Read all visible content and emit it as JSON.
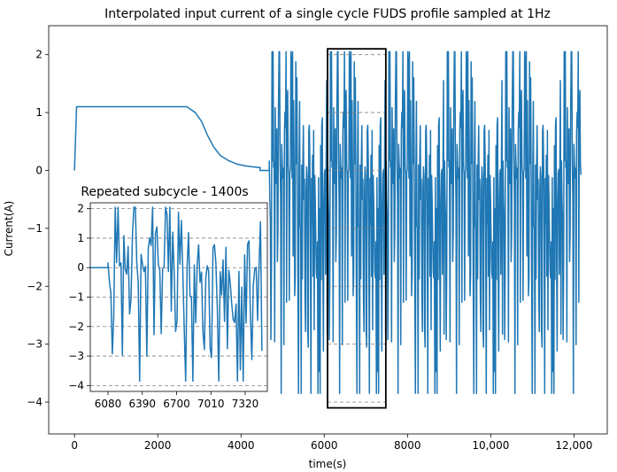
{
  "chart_data": {
    "type": "line",
    "title": "Interpolated input current of a single cycle FUDS profile sampled at 1Hz",
    "xlabel": "time(s)",
    "ylabel": "Current(A)",
    "xlim": [
      -620,
      12800
    ],
    "ylim": [
      -4.55,
      2.5
    ],
    "x_ticks": [
      0,
      2000,
      4000,
      6000,
      8000,
      10000,
      12000
    ],
    "x_tick_labels": [
      "0",
      "2000",
      "4000",
      "6000",
      "8000",
      "10,000",
      "12,000"
    ],
    "y_ticks": [
      -4,
      -3,
      -2,
      -1,
      0,
      1,
      2
    ],
    "y_tick_labels": [
      "−4",
      "−3",
      "−2",
      "−1",
      "0",
      "1",
      "2"
    ],
    "color": "#1f77b4",
    "grid": false,
    "series": [
      {
        "segments": [
          {
            "kind": "ramp",
            "points": [
              [
                0,
                0
              ],
              [
                50,
                1.1
              ],
              [
                2700,
                1.1
              ],
              [
                2900,
                1.0
              ],
              [
                3050,
                0.85
              ],
              [
                3200,
                0.6
              ],
              [
                3350,
                0.4
              ],
              [
                3500,
                0.26
              ],
              [
                3700,
                0.17
              ],
              [
                3900,
                0.11
              ],
              [
                4100,
                0.08
              ],
              [
                4300,
                0.06
              ],
              [
                4460,
                0.05
              ],
              [
                4460,
                0.0
              ],
              [
                4680,
                0.0
              ]
            ]
          },
          {
            "kind": "oscillation",
            "x_start": 4680,
            "x_end": 12170,
            "y_min": -3.85,
            "y_max": 2.05,
            "cycle_length": 1400,
            "sample_step": 13
          }
        ]
      }
    ],
    "highlight_box": {
      "x": [
        6080,
        7480
      ],
      "y": [
        -4.1,
        2.1
      ]
    },
    "inset": {
      "title": "Repeated subcycle - 1400s",
      "xlim": [
        5920,
        7520
      ],
      "ylim": [
        -4.2,
        2.2
      ],
      "x_ticks": [
        6080,
        6390,
        6700,
        7010,
        7320
      ],
      "x_tick_labels": [
        "6080",
        "6390",
        "6700",
        "7010",
        "7320"
      ],
      "y_ticks": [
        -4,
        -3,
        -2,
        -1,
        0,
        1,
        2
      ],
      "y_tick_labels": [
        "−4",
        "−3",
        "−2",
        "−1",
        "0",
        "1",
        "2"
      ],
      "dashed_levels": [
        2,
        1,
        0,
        -1,
        -2,
        -3,
        -4
      ]
    }
  }
}
